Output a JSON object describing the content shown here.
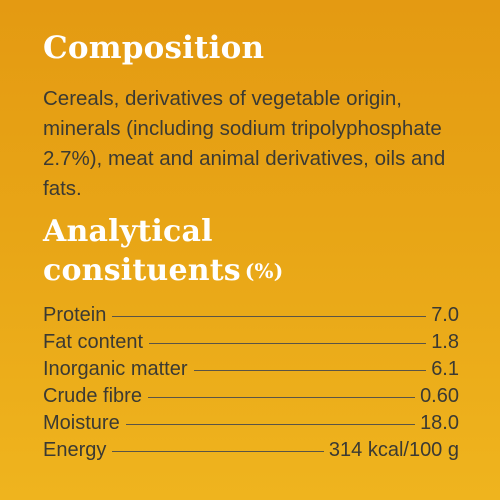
{
  "composition": {
    "title": "Composition",
    "text": "Cereals, derivatives of vegetable origin, minerals (including sodium tripolyphosphate 2.7%), meat and animal derivatives, oils and fats."
  },
  "analytical": {
    "title_line1": "Analytical",
    "title_line2": "consituents",
    "unit": "(%)",
    "rows": [
      {
        "label": "Protein",
        "value": "7.0"
      },
      {
        "label": "Fat content",
        "value": "1.8"
      },
      {
        "label": "Inorganic matter",
        "value": "6.1"
      },
      {
        "label": "Crude fibre",
        "value": "0.60"
      },
      {
        "label": "Moisture",
        "value": "18.0"
      },
      {
        "label": "Energy",
        "value": "314 kcal/100 g"
      }
    ]
  }
}
